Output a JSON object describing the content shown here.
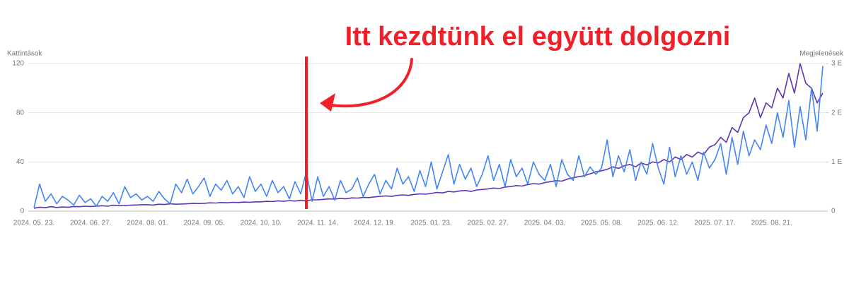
{
  "chart_data": {
    "type": "line",
    "annotation": "Itt kezdtünk el együtt dolgozni",
    "ylabel": "Kattintások",
    "y2label": "Megjelenések",
    "grid": true,
    "ylim": [
      0,
      120
    ],
    "yticks": [
      0,
      40,
      80,
      120
    ],
    "y2lim": [
      0,
      3000
    ],
    "y2ticks": [
      0,
      {
        "value": 1000,
        "label": "1 E"
      },
      {
        "value": 2000,
        "label": "2 E"
      },
      {
        "value": 3000,
        "label": "3 E"
      }
    ],
    "categories": [
      "2024. 05. 23.",
      null,
      null,
      null,
      null,
      null,
      null,
      null,
      null,
      null,
      "2024. 06. 27.",
      null,
      null,
      null,
      null,
      null,
      null,
      null,
      null,
      null,
      "2024. 08. 01.",
      null,
      null,
      null,
      null,
      null,
      null,
      null,
      null,
      null,
      "2024. 09. 05.",
      null,
      null,
      null,
      null,
      null,
      null,
      null,
      null,
      null,
      "2024. 10. 10.",
      null,
      null,
      null,
      null,
      null,
      null,
      null,
      null,
      null,
      "2024. 11. 14.",
      null,
      null,
      null,
      null,
      null,
      null,
      null,
      null,
      null,
      "2024. 12. 19.",
      null,
      null,
      null,
      null,
      null,
      null,
      null,
      null,
      null,
      "2025. 01. 23.",
      null,
      null,
      null,
      null,
      null,
      null,
      null,
      null,
      null,
      "2025. 02. 27.",
      null,
      null,
      null,
      null,
      null,
      null,
      null,
      null,
      null,
      "2025. 04. 03.",
      null,
      null,
      null,
      null,
      null,
      null,
      null,
      null,
      null,
      "2025. 05. 08.",
      null,
      null,
      null,
      null,
      null,
      null,
      null,
      null,
      null,
      "2025. 06. 12.",
      null,
      null,
      null,
      null,
      null,
      null,
      null,
      null,
      null,
      "2025. 07. 17.",
      null,
      null,
      null,
      null,
      null,
      null,
      null,
      null,
      null,
      "2025. 08. 21.",
      null,
      null,
      null,
      null,
      null,
      null,
      null,
      null,
      null
    ],
    "series": [
      {
        "name": "Megjelenések",
        "axis": "y2",
        "color": "#5e35b1",
        "values": [
          60,
          80,
          70,
          90,
          75,
          85,
          80,
          95,
          90,
          100,
          95,
          100,
          110,
          100,
          120,
          110,
          115,
          120,
          125,
          130,
          130,
          125,
          140,
          135,
          150,
          140,
          145,
          150,
          160,
          155,
          160,
          170,
          165,
          175,
          170,
          180,
          175,
          185,
          180,
          190,
          190,
          200,
          195,
          210,
          200,
          215,
          205,
          220,
          210,
          230,
          230,
          240,
          250,
          245,
          260,
          250,
          270,
          265,
          280,
          275,
          290,
          300,
          310,
          300,
          320,
          330,
          320,
          340,
          350,
          345,
          360,
          380,
          370,
          400,
          390,
          410,
          420,
          400,
          430,
          440,
          450,
          470,
          460,
          490,
          500,
          520,
          510,
          540,
          560,
          550,
          580,
          600,
          620,
          610,
          650,
          680,
          700,
          720,
          760,
          800,
          820,
          850,
          900,
          870,
          920,
          950,
          900,
          980,
          940,
          1000,
          980,
          1050,
          1000,
          1100,
          1050,
          1150,
          1100,
          1200,
          1150,
          1300,
          1350,
          1500,
          1400,
          1700,
          1600,
          1900,
          2000,
          2300,
          1900,
          2200,
          2100,
          2500,
          2300,
          2800,
          2400,
          3000,
          2600,
          2500,
          2200,
          2400
        ]
      },
      {
        "name": "Kattintások",
        "color": "#4285f4",
        "values": [
          3,
          22,
          8,
          14,
          6,
          12,
          9,
          5,
          13,
          7,
          10,
          4,
          12,
          8,
          15,
          6,
          20,
          11,
          14,
          9,
          12,
          8,
          16,
          10,
          6,
          22,
          15,
          26,
          14,
          20,
          27,
          12,
          22,
          17,
          25,
          14,
          20,
          11,
          28,
          16,
          22,
          12,
          25,
          15,
          20,
          10,
          24,
          14,
          32,
          8,
          28,
          12,
          20,
          9,
          25,
          15,
          18,
          27,
          12,
          22,
          30,
          14,
          25,
          18,
          35,
          22,
          28,
          16,
          33,
          20,
          40,
          18,
          32,
          46,
          22,
          38,
          26,
          35,
          20,
          30,
          45,
          25,
          38,
          20,
          42,
          28,
          35,
          22,
          40,
          30,
          25,
          38,
          20,
          42,
          30,
          25,
          45,
          28,
          36,
          30,
          35,
          58,
          28,
          45,
          32,
          50,
          25,
          40,
          30,
          55,
          35,
          22,
          52,
          28,
          45,
          30,
          40,
          25,
          48,
          35,
          42,
          55,
          30,
          60,
          38,
          65,
          45,
          58,
          50,
          70,
          55,
          80,
          60,
          90,
          52,
          85,
          58,
          100,
          65,
          118
        ]
      }
    ]
  }
}
